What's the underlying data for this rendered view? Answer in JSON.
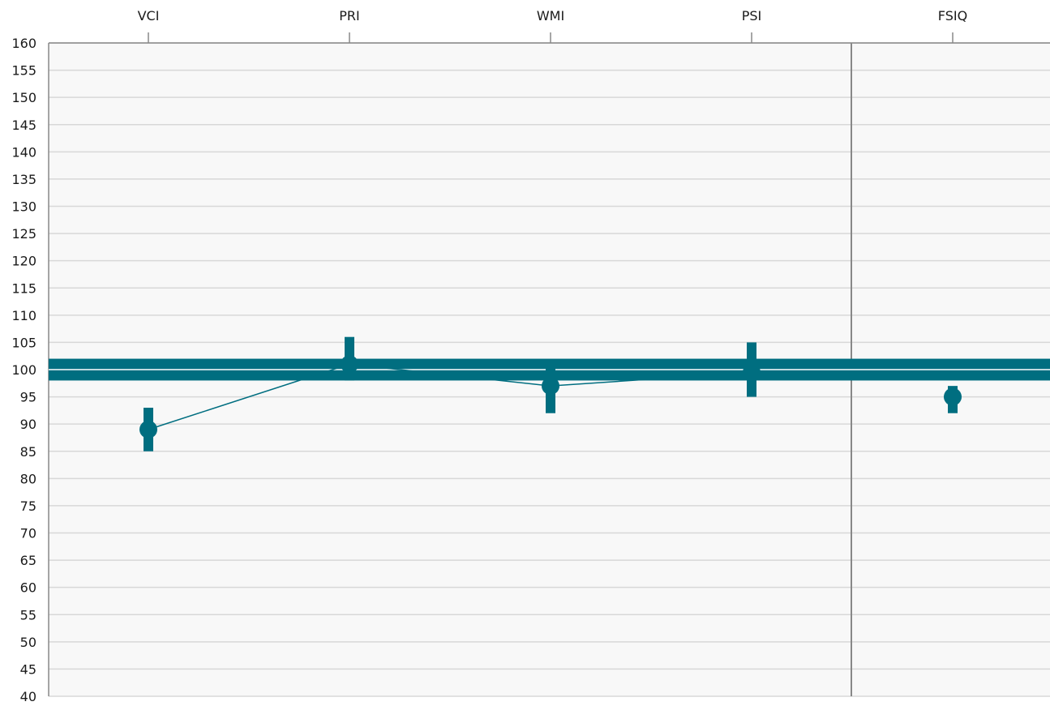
{
  "chart_data": {
    "type": "line",
    "categories": [
      "VCI",
      "PRI",
      "WMI",
      "PSI",
      "FSIQ"
    ],
    "separator_before": "FSIQ",
    "series": [
      {
        "values": [
          89,
          101,
          97,
          99.5,
          95
        ]
      }
    ],
    "confidence_intervals": [
      [
        85,
        93
      ],
      [
        98,
        106
      ],
      [
        92,
        101
      ],
      [
        95,
        105
      ],
      [
        92,
        97
      ]
    ],
    "reference_band": {
      "center": 100,
      "low": 98,
      "high": 102
    },
    "y_ticks": [
      160,
      155,
      150,
      145,
      140,
      135,
      130,
      125,
      120,
      115,
      110,
      105,
      100,
      95,
      90,
      85,
      80,
      75,
      70,
      65,
      60,
      55,
      50,
      45,
      40
    ],
    "ylim": [
      40,
      160
    ],
    "grid": true,
    "colors": {
      "accent": "#006e80",
      "band": "#006e80",
      "plot_background": "#f8f8f8",
      "grid": "#d8d8d8",
      "axis": "#888888"
    }
  }
}
